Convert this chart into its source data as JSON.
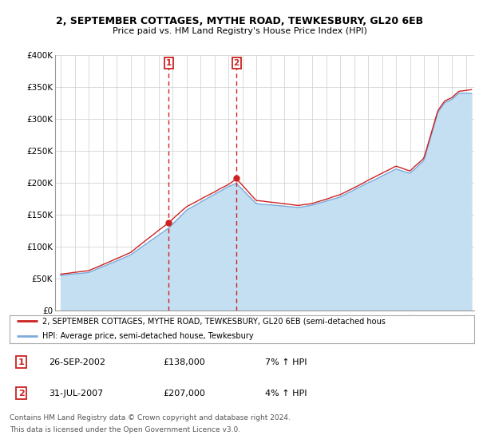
{
  "title": "2, SEPTEMBER COTTAGES, MYTHE ROAD, TEWKESBURY, GL20 6EB",
  "subtitle": "Price paid vs. HM Land Registry's House Price Index (HPI)",
  "y_min": 0,
  "y_max": 400000,
  "y_ticks": [
    0,
    50000,
    100000,
    150000,
    200000,
    250000,
    300000,
    350000,
    400000
  ],
  "y_tick_labels": [
    "£0",
    "£50K",
    "£100K",
    "£150K",
    "£200K",
    "£250K",
    "£300K",
    "£350K",
    "£400K"
  ],
  "hpi_color": "#7aabda",
  "hpi_fill_color": "#c5dff2",
  "price_color": "#cc2222",
  "sale1_year": 2002.73,
  "sale1_price": 138000,
  "sale2_year": 2007.58,
  "sale2_price": 207000,
  "sale1_date": "26-SEP-2002",
  "sale1_price_str": "£138,000",
  "sale1_hpi_str": "7% ↑ HPI",
  "sale2_date": "31-JUL-2007",
  "sale2_price_str": "£207,000",
  "sale2_hpi_str": "4% ↑ HPI",
  "legend_line1": "2, SEPTEMBER COTTAGES, MYTHE ROAD, TEWKESBURY, GL20 6EB (semi-detached hous",
  "legend_line2": "HPI: Average price, semi-detached house, Tewkesbury",
  "footnote1": "Contains HM Land Registry data © Crown copyright and database right 2024.",
  "footnote2": "This data is licensed under the Open Government Licence v3.0.",
  "grid_color": "#cccccc",
  "box_color": "#cc2222",
  "hpi_key_years": [
    1995,
    1997,
    2000,
    2002.73,
    2004,
    2007,
    2007.58,
    2009,
    2012,
    2013,
    2015,
    2017,
    2019,
    2020,
    2021,
    2022,
    2022.5,
    2023,
    2023.5,
    2024.4
  ],
  "hpi_key_vals": [
    55000,
    60000,
    88000,
    130000,
    158000,
    195000,
    200000,
    168000,
    162000,
    165000,
    178000,
    200000,
    222000,
    215000,
    235000,
    310000,
    325000,
    330000,
    340000,
    340000
  ],
  "price_key_years": [
    1995,
    1997,
    2000,
    2002.73,
    2004,
    2007,
    2007.58,
    2009,
    2012,
    2013,
    2015,
    2017,
    2019,
    2020,
    2021,
    2022,
    2022.5,
    2023,
    2023.5,
    2024.4
  ],
  "price_key_vals": [
    57000,
    63000,
    92000,
    138000,
    163000,
    198000,
    207000,
    172000,
    165000,
    168000,
    182000,
    205000,
    228000,
    220000,
    240000,
    315000,
    330000,
    335000,
    345000,
    348000
  ]
}
